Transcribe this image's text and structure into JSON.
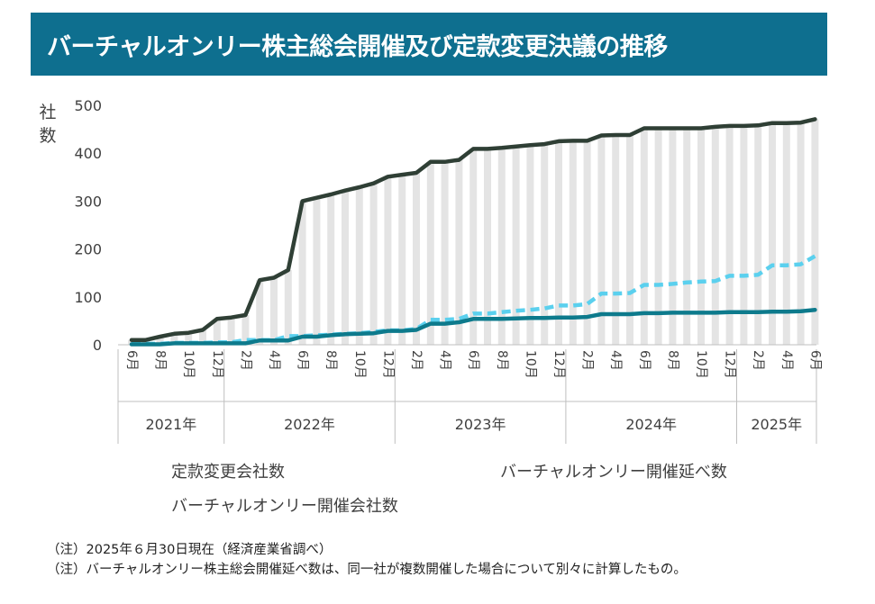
{
  "title": "バーチャルオンリー株主総会開催及び定款変更決議の推移",
  "notes": [
    "（注）2025年６月30日現在（経済産業省調べ）",
    "（注）バーチャルオンリー株主総会開催延べ数は、同一社が複数開催した場合について別々に計算したもの。"
  ],
  "colors": {
    "title_bg": "#0e6f8f",
    "teiken": "#2f3f35",
    "nobe": "#5bd0ee",
    "kaisai": "#0d7a8c",
    "bars": "#e4e4e4",
    "axis": "#bfbfbf"
  },
  "legend": [
    {
      "label": "定款変更会社数",
      "color": "#2f3f35",
      "dash": false
    },
    {
      "label": "バーチャルオンリー開催延べ数",
      "color": "#5bd0ee",
      "dash": true
    },
    {
      "label": "バーチャルオンリー開催会社数",
      "color": "#0d7a8c",
      "dash": false
    }
  ],
  "chart_data": {
    "type": "line",
    "title": "",
    "ylabel": "社数",
    "ylim": [
      0,
      500
    ],
    "yticks": [
      0,
      100,
      200,
      300,
      400,
      500
    ],
    "grid": false,
    "background_bars": "定款変更会社数",
    "categories": [
      "2021-06",
      "2021-07",
      "2021-08",
      "2021-09",
      "2021-10",
      "2021-11",
      "2021-12",
      "2022-01",
      "2022-02",
      "2022-03",
      "2022-04",
      "2022-05",
      "2022-06",
      "2022-07",
      "2022-08",
      "2022-09",
      "2022-10",
      "2022-11",
      "2022-12",
      "2023-01",
      "2023-02",
      "2023-03",
      "2023-04",
      "2023-05",
      "2023-06",
      "2023-07",
      "2023-08",
      "2023-09",
      "2023-10",
      "2023-11",
      "2023-12",
      "2024-01",
      "2024-02",
      "2024-03",
      "2024-04",
      "2024-05",
      "2024-06",
      "2024-07",
      "2024-08",
      "2024-09",
      "2024-10",
      "2024-11",
      "2024-12",
      "2025-01",
      "2025-02",
      "2025-03",
      "2025-04",
      "2025-05",
      "2025-06"
    ],
    "tick_labels": [
      "6月",
      "",
      "8月",
      "",
      "10月",
      "",
      "12月",
      "",
      "2月",
      "",
      "4月",
      "",
      "6月",
      "",
      "8月",
      "",
      "10月",
      "",
      "12月",
      "",
      "2月",
      "",
      "4月",
      "",
      "6月",
      "",
      "8月",
      "",
      "10月",
      "",
      "12月",
      "",
      "2月",
      "",
      "4月",
      "",
      "6月",
      "",
      "8月",
      "",
      "10月",
      "",
      "12月",
      "",
      "2月",
      "",
      "4月",
      "",
      "6月"
    ],
    "years": [
      {
        "label": "2021年",
        "start": 0,
        "end": 6
      },
      {
        "label": "2022年",
        "start": 7,
        "end": 18
      },
      {
        "label": "2023年",
        "start": 19,
        "end": 30
      },
      {
        "label": "2024年",
        "start": 31,
        "end": 42
      },
      {
        "label": "2025年",
        "start": 43,
        "end": 48
      }
    ],
    "series": [
      {
        "name": "定款変更会社数",
        "values": [
          10,
          10,
          17,
          23,
          25,
          31,
          54,
          57,
          62,
          135,
          140,
          156,
          300,
          307,
          314,
          322,
          329,
          337,
          351,
          355,
          359,
          382,
          382,
          386,
          409,
          409,
          411,
          414,
          417,
          419,
          425,
          426,
          426,
          437,
          438,
          438,
          452,
          452,
          452,
          452,
          452,
          455,
          457,
          457,
          458,
          463,
          463,
          464,
          471
        ]
      },
      {
        "name": "バーチャルオンリー開催延べ数",
        "values": [
          2,
          2,
          2,
          4,
          4,
          4,
          5,
          5,
          10,
          10,
          10,
          18,
          18,
          20,
          21,
          23,
          24,
          27,
          30,
          30,
          33,
          52,
          52,
          54,
          65,
          65,
          68,
          71,
          73,
          76,
          82,
          82,
          85,
          107,
          107,
          108,
          125,
          125,
          127,
          130,
          132,
          133,
          144,
          144,
          146,
          166,
          166,
          168,
          185
        ]
      },
      {
        "name": "バーチャルオンリー開催会社数",
        "values": [
          1,
          1,
          1,
          3,
          3,
          3,
          3,
          3,
          3,
          9,
          9,
          9,
          17,
          17,
          20,
          22,
          23,
          24,
          29,
          29,
          31,
          44,
          44,
          47,
          54,
          54,
          54,
          55,
          56,
          56,
          57,
          57,
          58,
          64,
          64,
          64,
          66,
          66,
          67,
          67,
          67,
          67,
          68,
          68,
          68,
          69,
          69,
          70,
          73
        ]
      }
    ]
  }
}
